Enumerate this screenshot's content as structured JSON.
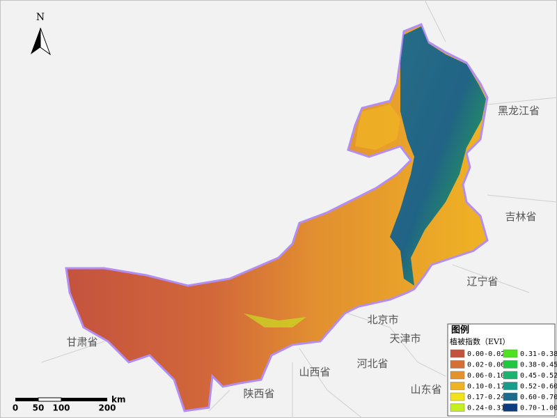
{
  "north": "N",
  "places": [
    "黑龙江省",
    "吉林省",
    "辽宁省",
    "北京市",
    "天津市",
    "河北省",
    "山西省",
    "山东省",
    "陕西省",
    "甘肃省"
  ],
  "legend": {
    "title": "图例",
    "subtitle": "植被指数（EVI）",
    "items": [
      {
        "label": "0.00-0.02",
        "color": "#c4533e"
      },
      {
        "label": "0.02-0.06",
        "color": "#d66f33"
      },
      {
        "label": "0.06-0.10",
        "color": "#e5922c"
      },
      {
        "label": "0.10-0.17",
        "color": "#efb324"
      },
      {
        "label": "0.17-0.24",
        "color": "#f2e21c"
      },
      {
        "label": "0.24-0.31",
        "color": "#c6ef1f"
      },
      {
        "label": "0.31-0.38",
        "color": "#4fe31f"
      },
      {
        "label": "0.38-0.45",
        "color": "#1fc83e"
      },
      {
        "label": "0.45-0.52",
        "color": "#1ab36f"
      },
      {
        "label": "0.52-0.60",
        "color": "#169d8c"
      },
      {
        "label": "0.60-0.70",
        "color": "#1d6b8c"
      },
      {
        "label": "0.70-1.00",
        "color": "#0c3b80"
      }
    ]
  },
  "scalebar": {
    "labels": [
      "0",
      "50",
      "100",
      "200"
    ],
    "unit": "km"
  }
}
